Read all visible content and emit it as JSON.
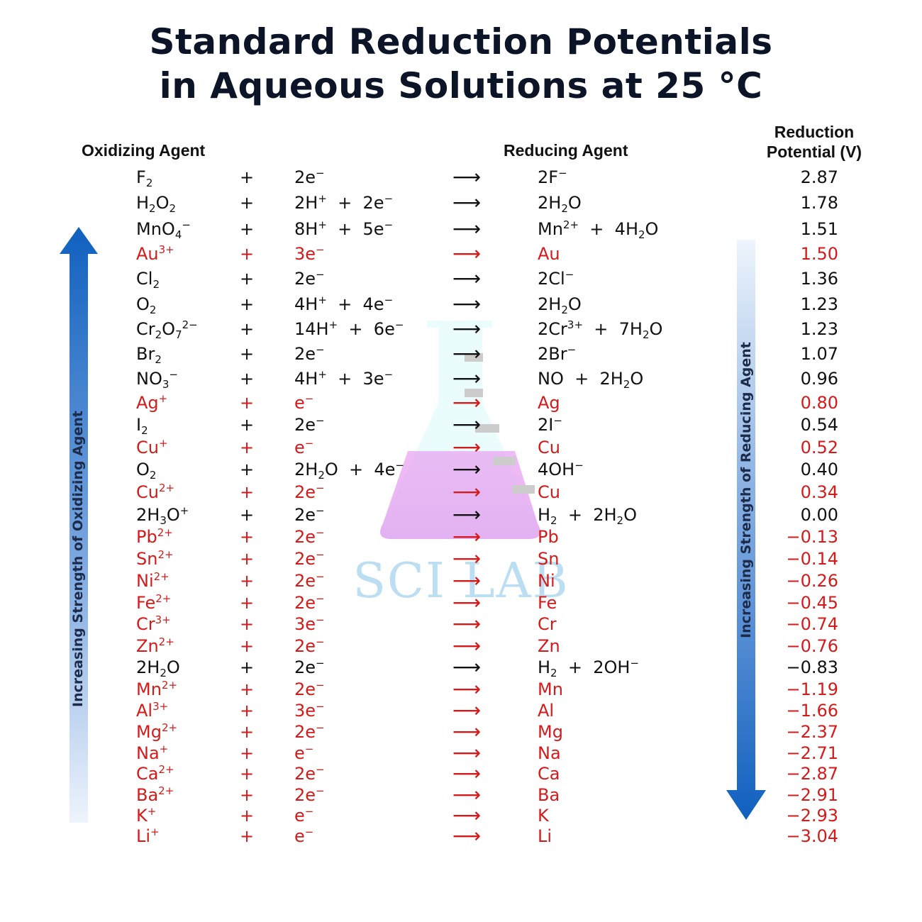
{
  "title_line1": "Standard Reduction Potentials",
  "title_line2": "in Aqueous Solutions at 25 °C",
  "headers": {
    "oxidizing": "Oxidizing Agent",
    "reducing": "Reducing Agent",
    "potential_line1": "Reduction",
    "potential_line2": "Potential (V)"
  },
  "side_labels": {
    "left": "Increasing Strength of Oxidizing Agent",
    "right": "Increasing Strength of Reducing Agent"
  },
  "watermark": "SCI LAB",
  "colors": {
    "red": "#d41a1a",
    "black": "#111111",
    "arrow_blue": "#1565c0"
  },
  "rows": [
    {
      "ox": "F<sub>2</sub>",
      "el": "2e<sup>−</sup>",
      "red": "2F<sup>−</sup>",
      "pot": "2.87",
      "hl": false
    },
    {
      "ox": "H<sub>2</sub>O<sub>2</sub>",
      "el": "2H<sup>+</sup> &nbsp;+ &nbsp;2e<sup>−</sup>",
      "red": "2H<sub>2</sub>O",
      "pot": "1.78",
      "hl": false
    },
    {
      "ox": "MnO<sub>4</sub><sup>−</sup>",
      "el": "8H<sup>+</sup> &nbsp;+ &nbsp;5e<sup>−</sup>",
      "red": "Mn<sup>2+</sup> &nbsp;+ &nbsp;4H<sub>2</sub>O",
      "pot": "1.51",
      "hl": false
    },
    {
      "ox": "Au<sup>3+</sup>",
      "el": "3e<sup>−</sup>",
      "red": "Au",
      "pot": "1.50",
      "hl": true
    },
    {
      "ox": "Cl<sub>2</sub>",
      "el": "2e<sup>−</sup>",
      "red": "2Cl<sup>−</sup>",
      "pot": "1.36",
      "hl": false
    },
    {
      "ox": "O<sub>2</sub>",
      "el": "4H<sup>+</sup> &nbsp;+ &nbsp;4e<sup>−</sup>",
      "red": "2H<sub>2</sub>O",
      "pot": "1.23",
      "hl": false
    },
    {
      "ox": "Cr<sub>2</sub>O<sub>7</sub><sup>2−</sup>",
      "el": "14H<sup>+</sup> &nbsp;+ &nbsp;6e<sup>−</sup>",
      "red": "2Cr<sup>3+</sup> &nbsp;+ &nbsp;7H<sub>2</sub>O",
      "pot": "1.23",
      "hl": false
    },
    {
      "ox": "Br<sub>2</sub>",
      "el": "2e<sup>−</sup>",
      "red": "2Br<sup>−</sup>",
      "pot": "1.07",
      "hl": false
    },
    {
      "ox": "NO<sub>3</sub><sup>−</sup>",
      "el": "4H<sup>+</sup> &nbsp;+ &nbsp;3e<sup>−</sup>",
      "red": "NO &nbsp;+ &nbsp;2H<sub>2</sub>O",
      "pot": "0.96",
      "hl": false
    },
    {
      "ox": "Ag<sup>+</sup>",
      "el": "e<sup>−</sup>",
      "red": "Ag",
      "pot": "0.80",
      "hl": true
    },
    {
      "ox": "I<sub>2</sub>",
      "el": "2e<sup>−</sup>",
      "red": "2I<sup>−</sup>",
      "pot": "0.54",
      "hl": false
    },
    {
      "ox": "Cu<sup>+</sup>",
      "el": "e<sup>−</sup>",
      "red": "Cu",
      "pot": "0.52",
      "hl": true
    },
    {
      "ox": "O<sub>2</sub>",
      "el": "2H<sub>2</sub>O &nbsp;+ &nbsp;4e<sup>−</sup>",
      "red": "4OH<sup>−</sup>",
      "pot": "0.40",
      "hl": false
    },
    {
      "ox": "Cu<sup>2+</sup>",
      "el": "2e<sup>−</sup>",
      "red": "Cu",
      "pot": "0.34",
      "hl": true
    },
    {
      "ox": "2H<sub>3</sub>O<sup>+</sup>",
      "el": "2e<sup>−</sup>",
      "red": "H<sub>2</sub> &nbsp;+ &nbsp;2H<sub>2</sub>O",
      "pot": "0.00",
      "hl": false
    },
    {
      "ox": "Pb<sup>2+</sup>",
      "el": "2e<sup>−</sup>",
      "red": "Pb",
      "pot": "−0.13",
      "hl": true
    },
    {
      "ox": "Sn<sup>2+</sup>",
      "el": "2e<sup>−</sup>",
      "red": "Sn",
      "pot": "−0.14",
      "hl": true
    },
    {
      "ox": "Ni<sup>2+</sup>",
      "el": "2e<sup>−</sup>",
      "red": "Ni",
      "pot": "−0.26",
      "hl": true
    },
    {
      "ox": "Fe<sup>2+</sup>",
      "el": "2e<sup>−</sup>",
      "red": "Fe",
      "pot": "−0.45",
      "hl": true
    },
    {
      "ox": "Cr<sup>3+</sup>",
      "el": "3e<sup>−</sup>",
      "red": "Cr",
      "pot": "−0.74",
      "hl": true
    },
    {
      "ox": "Zn<sup>2+</sup>",
      "el": "2e<sup>−</sup>",
      "red": "Zn",
      "pot": "−0.76",
      "hl": true
    },
    {
      "ox": "2H<sub>2</sub>O",
      "el": "2e<sup>−</sup>",
      "red": "H<sub>2</sub> &nbsp;+ &nbsp;2OH<sup>−</sup>",
      "pot": "−0.83",
      "hl": false
    },
    {
      "ox": "Mn<sup>2+</sup>",
      "el": "2e<sup>−</sup>",
      "red": "Mn",
      "pot": "−1.19",
      "hl": true
    },
    {
      "ox": "Al<sup>3+</sup>",
      "el": "3e<sup>−</sup>",
      "red": "Al",
      "pot": "−1.66",
      "hl": true
    },
    {
      "ox": "Mg<sup>2+</sup>",
      "el": "2e<sup>−</sup>",
      "red": "Mg",
      "pot": "−2.37",
      "hl": true
    },
    {
      "ox": "Na<sup>+</sup>",
      "el": "e<sup>−</sup>",
      "red": "Na",
      "pot": "−2.71",
      "hl": true
    },
    {
      "ox": "Ca<sup>2+</sup>",
      "el": "2e<sup>−</sup>",
      "red": "Ca",
      "pot": "−2.87",
      "hl": true
    },
    {
      "ox": "Ba<sup>2+</sup>",
      "el": "2e<sup>−</sup>",
      "red": "Ba",
      "pot": "−2.91",
      "hl": true
    },
    {
      "ox": "K<sup>+</sup>",
      "el": "e<sup>−</sup>",
      "red": "K",
      "pot": "−2.93",
      "hl": true
    },
    {
      "ox": "Li<sup>+</sup>",
      "el": "e<sup>−</sup>",
      "red": "Li",
      "pot": "−3.04",
      "hl": true
    }
  ],
  "plus_symbol": "+",
  "arrow_symbol": "⟶"
}
